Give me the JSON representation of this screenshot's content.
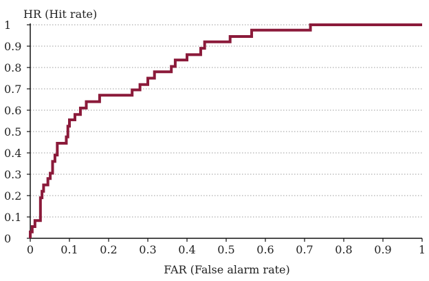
{
  "chart_data": {
    "type": "line",
    "title": "",
    "xlabel": "FAR (False alarm rate)",
    "ylabel": "HR (Hit rate)",
    "xlim": [
      0,
      1
    ],
    "ylim": [
      0,
      1
    ],
    "grid": "horizontal dotted",
    "line_color": "#8B1A3A",
    "x_ticks": [
      0,
      0.1,
      0.2,
      0.3,
      0.4,
      0.5,
      0.6,
      0.7,
      0.8,
      0.9,
      1
    ],
    "x_tick_labels": [
      "0",
      "0.1",
      "0.2",
      "0.3",
      "0.4",
      "0.5",
      "0.6",
      "0.7",
      "0.8",
      "0.9",
      "1"
    ],
    "y_ticks": [
      0,
      0.1,
      0.2,
      0.3,
      0.4,
      0.5,
      0.6,
      0.7,
      0.8,
      0.9,
      1
    ],
    "y_tick_labels": [
      "0",
      "0.1",
      "0.2",
      "0.3",
      "0.4",
      "0.5",
      "0.6",
      "0.7",
      "0.8",
      "0.9",
      "1"
    ],
    "series": [
      {
        "points": [
          [
            0,
            0
          ],
          [
            0,
            0.03
          ],
          [
            0.005,
            0.03
          ],
          [
            0.005,
            0.055
          ],
          [
            0.012,
            0.055
          ],
          [
            0.012,
            0.083
          ],
          [
            0.026,
            0.083
          ],
          [
            0.026,
            0.19
          ],
          [
            0.03,
            0.19
          ],
          [
            0.03,
            0.22
          ],
          [
            0.034,
            0.22
          ],
          [
            0.034,
            0.25
          ],
          [
            0.045,
            0.25
          ],
          [
            0.045,
            0.28
          ],
          [
            0.051,
            0.28
          ],
          [
            0.051,
            0.305
          ],
          [
            0.057,
            0.305
          ],
          [
            0.057,
            0.36
          ],
          [
            0.063,
            0.36
          ],
          [
            0.063,
            0.39
          ],
          [
            0.069,
            0.39
          ],
          [
            0.069,
            0.445
          ],
          [
            0.092,
            0.445
          ],
          [
            0.092,
            0.475
          ],
          [
            0.096,
            0.475
          ],
          [
            0.096,
            0.525
          ],
          [
            0.1,
            0.525
          ],
          [
            0.1,
            0.555
          ],
          [
            0.114,
            0.555
          ],
          [
            0.114,
            0.58
          ],
          [
            0.128,
            0.58
          ],
          [
            0.128,
            0.61
          ],
          [
            0.143,
            0.61
          ],
          [
            0.143,
            0.64
          ],
          [
            0.177,
            0.64
          ],
          [
            0.177,
            0.67
          ],
          [
            0.26,
            0.67
          ],
          [
            0.26,
            0.695
          ],
          [
            0.28,
            0.695
          ],
          [
            0.28,
            0.72
          ],
          [
            0.3,
            0.72
          ],
          [
            0.3,
            0.75
          ],
          [
            0.317,
            0.75
          ],
          [
            0.317,
            0.78
          ],
          [
            0.36,
            0.78
          ],
          [
            0.36,
            0.805
          ],
          [
            0.37,
            0.805
          ],
          [
            0.37,
            0.835
          ],
          [
            0.4,
            0.835
          ],
          [
            0.4,
            0.86
          ],
          [
            0.435,
            0.86
          ],
          [
            0.435,
            0.89
          ],
          [
            0.445,
            0.89
          ],
          [
            0.445,
            0.92
          ],
          [
            0.51,
            0.92
          ],
          [
            0.51,
            0.945
          ],
          [
            0.565,
            0.945
          ],
          [
            0.565,
            0.975
          ],
          [
            0.715,
            0.975
          ],
          [
            0.715,
            1
          ],
          [
            1,
            1
          ]
        ]
      }
    ]
  }
}
